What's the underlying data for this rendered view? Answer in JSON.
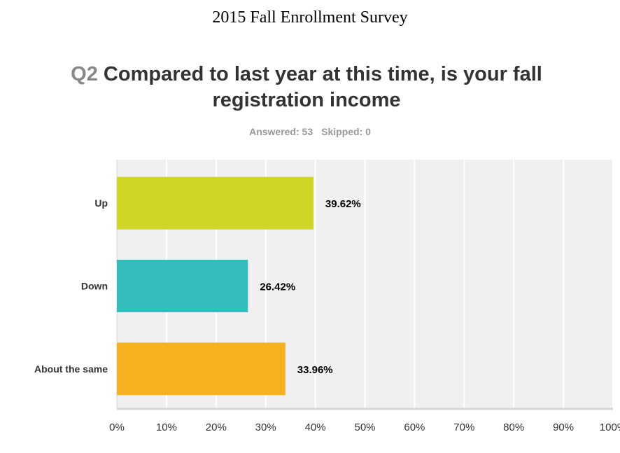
{
  "document_title": "2015 Fall Enrollment Survey",
  "question": {
    "number": "Q2",
    "text": "Compared to last year at this time, is your fall registration income"
  },
  "stats": {
    "answered": "Answered: 53",
    "skipped": "Skipped: 0"
  },
  "chart_data": {
    "type": "bar",
    "orientation": "horizontal",
    "categories": [
      "Up",
      "Down",
      "About the same"
    ],
    "values": [
      39.62,
      26.42,
      33.96
    ],
    "value_labels": [
      "39.62%",
      "26.42%",
      "33.96%"
    ],
    "colors": [
      "#cfd626",
      "#33bdbd",
      "#f6b11f"
    ],
    "xlim": [
      0,
      100
    ],
    "xticks": [
      "0%",
      "10%",
      "20%",
      "30%",
      "40%",
      "50%",
      "60%",
      "70%",
      "80%",
      "90%",
      "100%"
    ],
    "grid": true,
    "title": "Compared to last year at this time, is your fall registration income",
    "xlabel": "",
    "ylabel": ""
  }
}
